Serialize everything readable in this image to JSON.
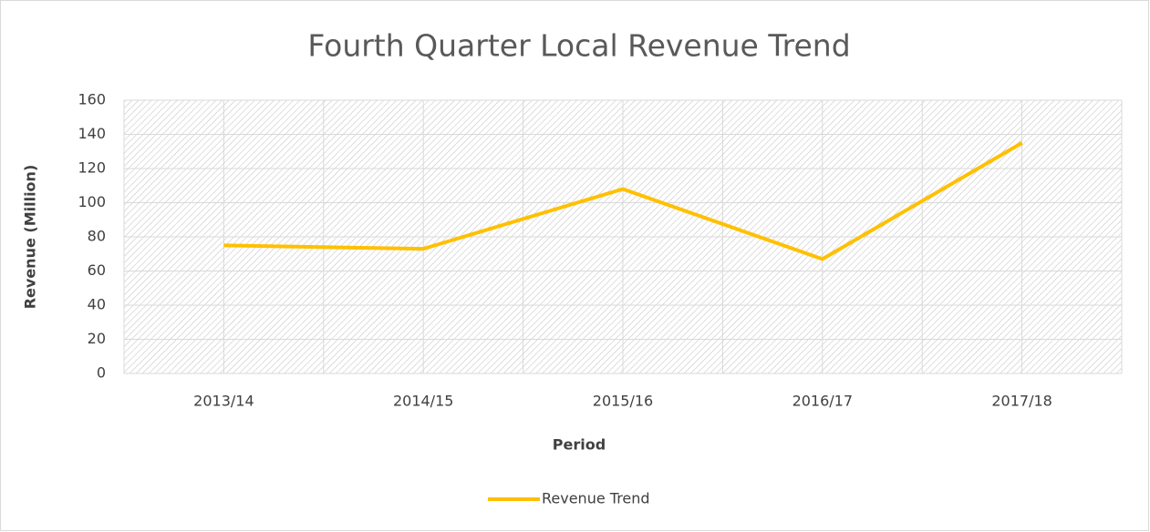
{
  "chart_data": {
    "type": "line",
    "title": "Fourth Quarter Local Revenue Trend",
    "x_label": "Period",
    "y_label": "Revenue (Million)",
    "categories": [
      "2013/14",
      "2014/15",
      "2015/16",
      "2016/17",
      "2017/18"
    ],
    "series": [
      {
        "name": "Revenue Trend",
        "color": "#ffc000",
        "values": [
          75,
          73,
          108,
          67,
          135
        ]
      }
    ],
    "ylim": [
      0,
      160
    ],
    "yticks": [
      0,
      20,
      40,
      60,
      80,
      100,
      120,
      140,
      160
    ],
    "grid": true,
    "legend": "bottom"
  }
}
